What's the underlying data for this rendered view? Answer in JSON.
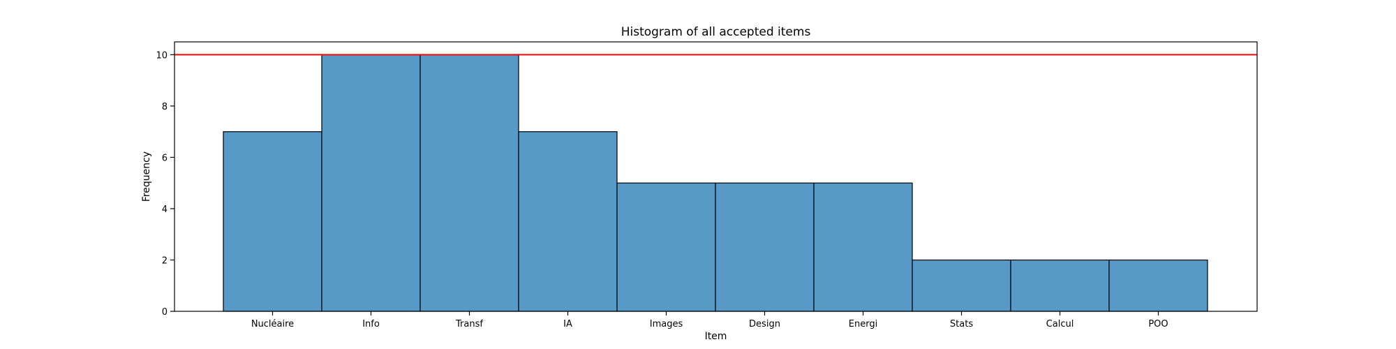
{
  "chart_data": {
    "type": "bar",
    "title": "Histogram of all accepted items",
    "xlabel": "Item",
    "ylabel": "Frequency",
    "categories": [
      "Nucléaire",
      "Info",
      "Transf",
      "IA",
      "Images",
      "Design",
      "Energi",
      "Stats",
      "Calcul",
      "POO"
    ],
    "values": [
      7,
      10,
      10,
      7,
      5,
      5,
      5,
      2,
      2,
      2
    ],
    "ylim": [
      0,
      10.5
    ],
    "yticks": [
      0,
      2,
      4,
      6,
      8,
      10
    ],
    "reference_line": 10,
    "grid": false,
    "colors": {
      "bar_fill": "#5799c7",
      "bar_edge": "#000000",
      "reference_line": "#ff0000",
      "axis": "#000000"
    }
  }
}
